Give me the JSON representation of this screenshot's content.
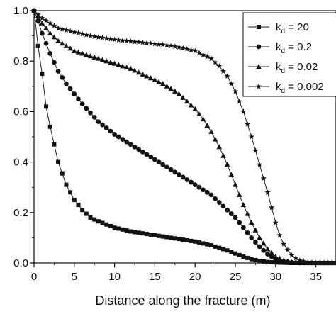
{
  "chart_data": {
    "type": "line",
    "xlabel": "Distance along the fracture (m)",
    "ylabel": "",
    "xlim": [
      0,
      37.5
    ],
    "ylim": [
      0,
      1.0
    ],
    "x_ticks": [
      0,
      5,
      10,
      15,
      20,
      25,
      30,
      35
    ],
    "y_ticks": [
      0.0,
      0.2,
      0.4,
      0.6,
      0.8,
      1.0
    ],
    "y_tick_labels": [
      "0.0",
      "0.2",
      "0.4",
      "0.6",
      "0.8",
      "1.0"
    ],
    "grid": false,
    "legend_position": "top-right",
    "series": [
      {
        "name": "kd = 20",
        "legend_main": "k",
        "legend_sub": "d",
        "legend_value": " = 20",
        "marker": "square",
        "x": [
          0,
          0.5,
          1,
          1.5,
          2,
          2.5,
          3,
          4,
          5,
          6,
          7,
          8,
          10,
          12,
          15,
          18,
          20,
          22,
          24,
          26,
          27,
          28,
          29,
          30,
          31,
          32,
          33,
          34,
          35,
          36,
          37.5
        ],
        "y": [
          1.0,
          0.86,
          0.75,
          0.62,
          0.54,
          0.47,
          0.4,
          0.31,
          0.25,
          0.21,
          0.18,
          0.165,
          0.14,
          0.125,
          0.11,
          0.095,
          0.085,
          0.07,
          0.05,
          0.025,
          0.015,
          0.008,
          0.004,
          0.002,
          0.001,
          0,
          0,
          0,
          0,
          0,
          0
        ]
      },
      {
        "name": "kd = 0.2",
        "legend_main": "k",
        "legend_sub": "d",
        "legend_value": " = 0.2",
        "marker": "circle",
        "x": [
          0,
          0.5,
          1,
          2,
          3,
          4,
          5,
          6,
          8,
          10,
          12,
          14,
          16,
          18,
          20,
          22,
          24,
          25,
          26,
          27,
          28,
          29,
          30,
          31,
          32,
          33,
          34,
          35,
          36,
          37.5
        ],
        "y": [
          1.0,
          0.96,
          0.91,
          0.83,
          0.76,
          0.71,
          0.67,
          0.63,
          0.56,
          0.51,
          0.47,
          0.43,
          0.39,
          0.35,
          0.31,
          0.27,
          0.21,
          0.18,
          0.14,
          0.1,
          0.065,
          0.035,
          0.015,
          0.006,
          0.002,
          0,
          0,
          0,
          0,
          0
        ]
      },
      {
        "name": "kd = 0.02",
        "legend_main": "k",
        "legend_sub": "d",
        "legend_value": " = 0.02",
        "marker": "triangle",
        "x": [
          0,
          0.5,
          1,
          2,
          3,
          4,
          5,
          6,
          8,
          10,
          12,
          14,
          16,
          18,
          20,
          21,
          22,
          23,
          24,
          25,
          26,
          27,
          28,
          29,
          30,
          31,
          32,
          33,
          34,
          35,
          36,
          37.5
        ],
        "y": [
          1.0,
          0.98,
          0.95,
          0.91,
          0.88,
          0.86,
          0.84,
          0.83,
          0.81,
          0.79,
          0.77,
          0.74,
          0.71,
          0.67,
          0.61,
          0.57,
          0.52,
          0.46,
          0.39,
          0.31,
          0.23,
          0.16,
          0.1,
          0.055,
          0.025,
          0.01,
          0.004,
          0.001,
          0,
          0,
          0,
          0
        ]
      },
      {
        "name": "kd = 0.002",
        "legend_main": "k",
        "legend_sub": "d",
        "legend_value": " = 0.002",
        "marker": "star",
        "x": [
          0,
          0.5,
          1,
          2,
          3,
          5,
          7,
          10,
          13,
          16,
          18,
          20,
          22,
          23,
          24,
          25,
          26,
          27,
          28,
          29,
          29.5,
          30,
          30.5,
          31,
          32,
          33,
          34,
          35,
          36,
          37.5
        ],
        "y": [
          1.0,
          0.985,
          0.97,
          0.95,
          0.93,
          0.915,
          0.9,
          0.885,
          0.875,
          0.865,
          0.855,
          0.84,
          0.81,
          0.78,
          0.74,
          0.68,
          0.6,
          0.5,
          0.39,
          0.28,
          0.22,
          0.16,
          0.11,
          0.075,
          0.03,
          0.01,
          0.003,
          0,
          0,
          0
        ]
      }
    ]
  }
}
